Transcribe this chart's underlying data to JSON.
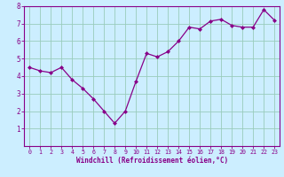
{
  "x": [
    0,
    1,
    2,
    3,
    4,
    5,
    6,
    7,
    8,
    9,
    10,
    11,
    12,
    13,
    14,
    15,
    16,
    17,
    18,
    19,
    20,
    21,
    22,
    23
  ],
  "y": [
    4.5,
    4.3,
    4.2,
    4.5,
    3.8,
    3.3,
    2.7,
    2.0,
    1.3,
    2.0,
    3.7,
    5.3,
    5.1,
    5.4,
    6.0,
    6.8,
    6.7,
    7.15,
    7.25,
    6.9,
    6.8,
    6.8,
    7.8,
    7.2
  ],
  "line_color": "#880088",
  "marker": "D",
  "marker_size": 2.0,
  "bg_color": "#cceeff",
  "grid_color": "#99ccbb",
  "xlabel": "Windchill (Refroidissement éolien,°C)",
  "xlabel_color": "#880088",
  "axis_color": "#880088",
  "tick_color": "#880088",
  "ylim": [
    0,
    8
  ],
  "xlim": [
    -0.5,
    23.5
  ],
  "yticks": [
    1,
    2,
    3,
    4,
    5,
    6,
    7,
    8
  ],
  "xticks": [
    0,
    1,
    2,
    3,
    4,
    5,
    6,
    7,
    8,
    9,
    10,
    11,
    12,
    13,
    14,
    15,
    16,
    17,
    18,
    19,
    20,
    21,
    22,
    23
  ],
  "xlabel_fontsize": 5.5,
  "tick_fontsize_x": 4.8,
  "tick_fontsize_y": 5.5
}
